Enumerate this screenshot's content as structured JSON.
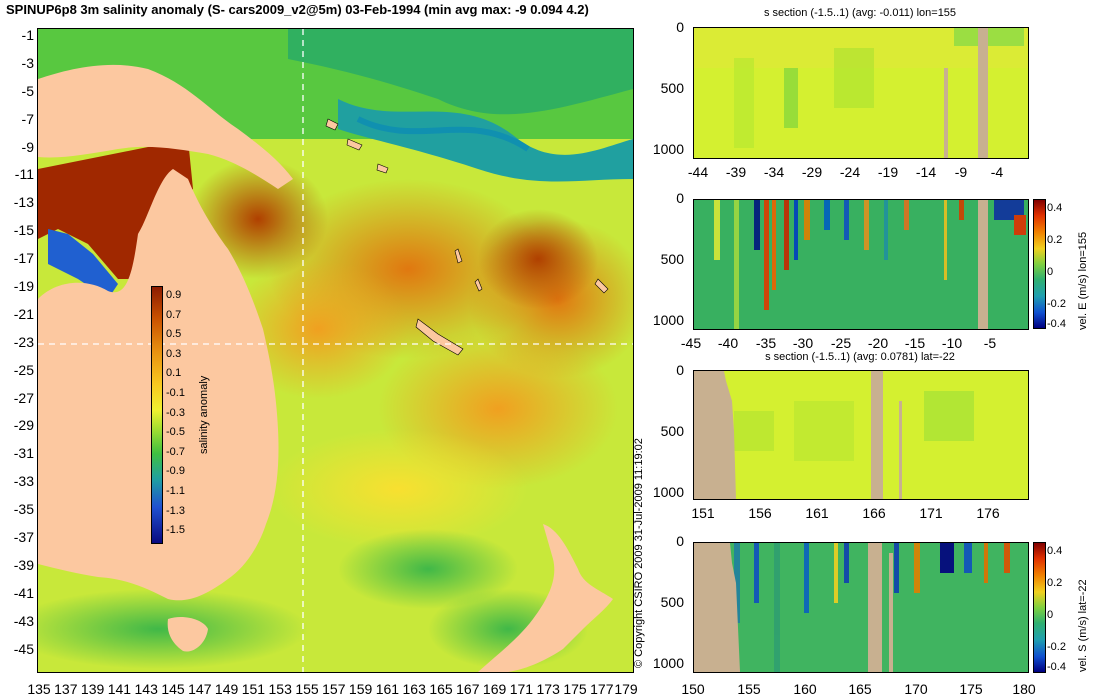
{
  "title": "SPINUP6p8 3m salinity anomaly (S- cars2009_v2@5m) 03-Feb-1994 (min avg max: -9 0.094 4.2)",
  "map": {
    "lat_ticks": [
      "-1",
      "-3",
      "-5",
      "-7",
      "-9",
      "-11",
      "-13",
      "-15",
      "-17",
      "-19",
      "-21",
      "-23",
      "-25",
      "-27",
      "-29",
      "-31",
      "-33",
      "-35",
      "-37",
      "-39",
      "-41",
      "-43",
      "-45"
    ],
    "lon_ticks": [
      "135",
      "137",
      "139",
      "141",
      "143",
      "145",
      "147",
      "149",
      "151",
      "153",
      "155",
      "157",
      "159",
      "161",
      "163",
      "165",
      "167",
      "169",
      "171",
      "173",
      "175",
      "177",
      "179"
    ],
    "colorbar": {
      "label": "salinity anomaly",
      "ticks": [
        "0.9",
        "0.7",
        "0.5",
        "0.3",
        "0.1",
        "-0.1",
        "-0.3",
        "-0.5",
        "-0.7",
        "-0.9",
        "-1.1",
        "-1.3",
        "-1.5"
      ],
      "colors": [
        "#9a2a00",
        "#c85a00",
        "#e08a10",
        "#f0b020",
        "#f8d830",
        "#e8e830",
        "#c0e030",
        "#70d040",
        "#30b050",
        "#20a0a0",
        "#2060d0",
        "#1020a0",
        "#000060"
      ]
    },
    "land_color": "#fcc8a0"
  },
  "copyright": "© Copyright CSIRO 2009   31-Jul-2009 11:19:02",
  "sections": [
    {
      "title": "s section (-1.5..1) (avg: -0.011) lon=155",
      "x_ticks": [
        "-44",
        "-39",
        "-34",
        "-29",
        "-24",
        "-19",
        "-14",
        "-9",
        "-4"
      ],
      "y_ticks": [
        "0",
        "500",
        "1000"
      ]
    },
    {
      "title": "",
      "x_ticks": [
        "-45",
        "-40",
        "-35",
        "-30",
        "-25",
        "-20",
        "-15",
        "-10",
        "-5"
      ],
      "y_ticks": [
        "0",
        "500",
        "1000"
      ],
      "colorbar": {
        "label": "vel. E (m/s) lon=155",
        "ticks": [
          "0.4",
          "0.2",
          "0",
          "-0.2",
          "-0.4"
        ]
      }
    },
    {
      "title": "s section (-1.5..1) (avg: 0.0781) lat=-22",
      "x_ticks": [
        "151",
        "156",
        "161",
        "166",
        "171",
        "176"
      ],
      "y_ticks": [
        "0",
        "500",
        "1000"
      ]
    },
    {
      "title": "",
      "x_ticks": [
        "150",
        "155",
        "160",
        "165",
        "170",
        "175",
        "180"
      ],
      "y_ticks": [
        "0",
        "500",
        "1000"
      ],
      "colorbar": {
        "label": "vel. S (m/s) lat=-22",
        "ticks": [
          "0.4",
          "0.2",
          "0",
          "-0.2",
          "-0.4"
        ]
      }
    }
  ]
}
